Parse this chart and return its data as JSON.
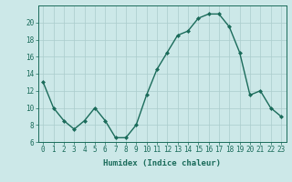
{
  "x": [
    0,
    1,
    2,
    3,
    4,
    5,
    6,
    7,
    8,
    9,
    10,
    11,
    12,
    13,
    14,
    15,
    16,
    17,
    18,
    19,
    20,
    21,
    22,
    23
  ],
  "y": [
    13,
    10,
    8.5,
    7.5,
    8.5,
    10,
    8.5,
    6.5,
    6.5,
    8,
    11.5,
    14.5,
    16.5,
    18.5,
    19,
    20.5,
    21,
    21,
    19.5,
    16.5,
    11.5,
    12,
    10,
    9
  ],
  "line_color": "#1a6b5a",
  "marker": "D",
  "marker_size": 2.0,
  "bg_color": "#cce8e8",
  "grid_color": "#aacccc",
  "xlabel": "Humidex (Indice chaleur)",
  "ylim": [
    6,
    22
  ],
  "xlim": [
    -0.5,
    23.5
  ],
  "yticks": [
    6,
    8,
    10,
    12,
    14,
    16,
    18,
    20
  ],
  "xticks": [
    0,
    1,
    2,
    3,
    4,
    5,
    6,
    7,
    8,
    9,
    10,
    11,
    12,
    13,
    14,
    15,
    16,
    17,
    18,
    19,
    20,
    21,
    22,
    23
  ],
  "xtick_labels": [
    "0",
    "1",
    "2",
    "3",
    "4",
    "5",
    "6",
    "7",
    "8",
    "9",
    "10",
    "11",
    "12",
    "13",
    "14",
    "15",
    "16",
    "17",
    "18",
    "19",
    "20",
    "21",
    "22",
    "23"
  ],
  "xlabel_fontsize": 6.5,
  "tick_fontsize": 5.5,
  "line_width": 1.0
}
